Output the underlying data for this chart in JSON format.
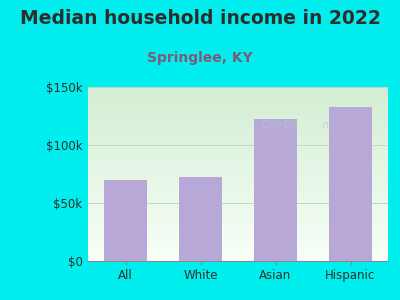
{
  "categories": [
    "All",
    "White",
    "Asian",
    "Hispanic"
  ],
  "values": [
    70000,
    72000,
    122000,
    133000
  ],
  "bar_color": "#b8a8d8",
  "title": "Median household income in 2022",
  "subtitle": "Springlee, KY",
  "subtitle_color": "#7a5c7a",
  "title_color": "#2d2d2d",
  "background_color": "#00eeee",
  "plot_bg_color_topleft": "#d4edd4",
  "plot_bg_color_white": "#f8fff8",
  "ylim": [
    0,
    150000
  ],
  "yticks": [
    0,
    50000,
    100000,
    150000
  ],
  "ytick_labels": [
    "$0",
    "$50k",
    "$100k",
    "$150k"
  ],
  "title_fontsize": 13.5,
  "subtitle_fontsize": 10,
  "tick_fontsize": 8.5,
  "watermark": "City-Da        n"
}
